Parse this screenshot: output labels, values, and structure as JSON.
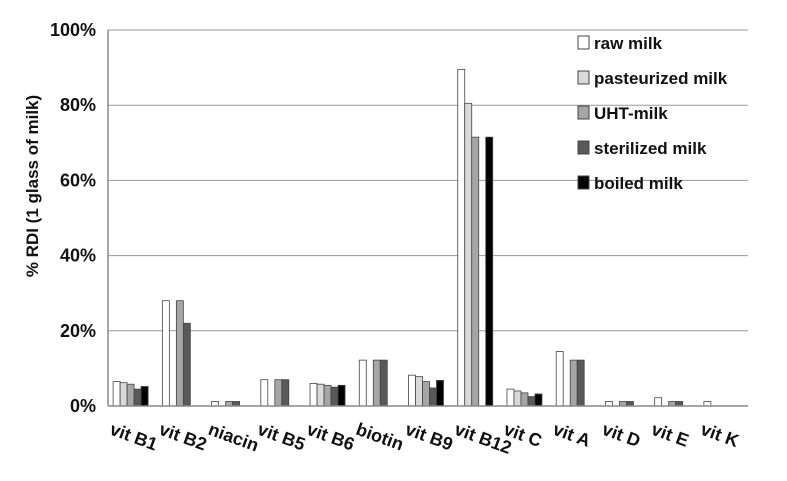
{
  "chart_data": {
    "type": "bar",
    "ylabel": "% RDI (1 glass of milk)",
    "ylim": [
      0,
      100
    ],
    "yticks": [
      "0%",
      "20%",
      "40%",
      "60%",
      "80%",
      "100%"
    ],
    "ytick_values": [
      0,
      20,
      40,
      60,
      80,
      100
    ],
    "grid": true,
    "legend_position": "top-right",
    "categories": [
      "vit B1",
      "vit B2",
      "niacin",
      "vit B5",
      "vit B6",
      "biotin",
      "vit B9",
      "vit B12",
      "vit C",
      "vit A",
      "vit D",
      "vit E",
      "vit K"
    ],
    "series": [
      {
        "name": "raw milk",
        "color": "#ffffff",
        "values": [
          6.5,
          28,
          1.2,
          7,
          6,
          12.2,
          8.2,
          89.5,
          4.5,
          14.5,
          1.2,
          2.2,
          1.2
        ]
      },
      {
        "name": "pasteurized milk",
        "color": "#d9d9d9",
        "values": [
          6.2,
          0,
          0,
          0,
          5.8,
          0,
          7.8,
          80.5,
          4,
          0,
          0,
          0,
          0
        ]
      },
      {
        "name": "UHT-milk",
        "color": "#a6a6a6",
        "values": [
          5.8,
          28,
          1.2,
          7,
          5.5,
          12.2,
          6.5,
          71.5,
          3.5,
          12.2,
          1.2,
          1.2,
          0
        ]
      },
      {
        "name": "sterilized milk",
        "color": "#595959",
        "values": [
          4.5,
          22,
          1.2,
          7,
          5,
          12.2,
          4.8,
          0,
          2.5,
          12.2,
          1.2,
          1.2,
          0
        ]
      },
      {
        "name": "boiled milk",
        "color": "#000000",
        "values": [
          5.2,
          0,
          0,
          0,
          5.5,
          0,
          6.8,
          71.5,
          3.2,
          0,
          0,
          0,
          0
        ]
      }
    ]
  }
}
